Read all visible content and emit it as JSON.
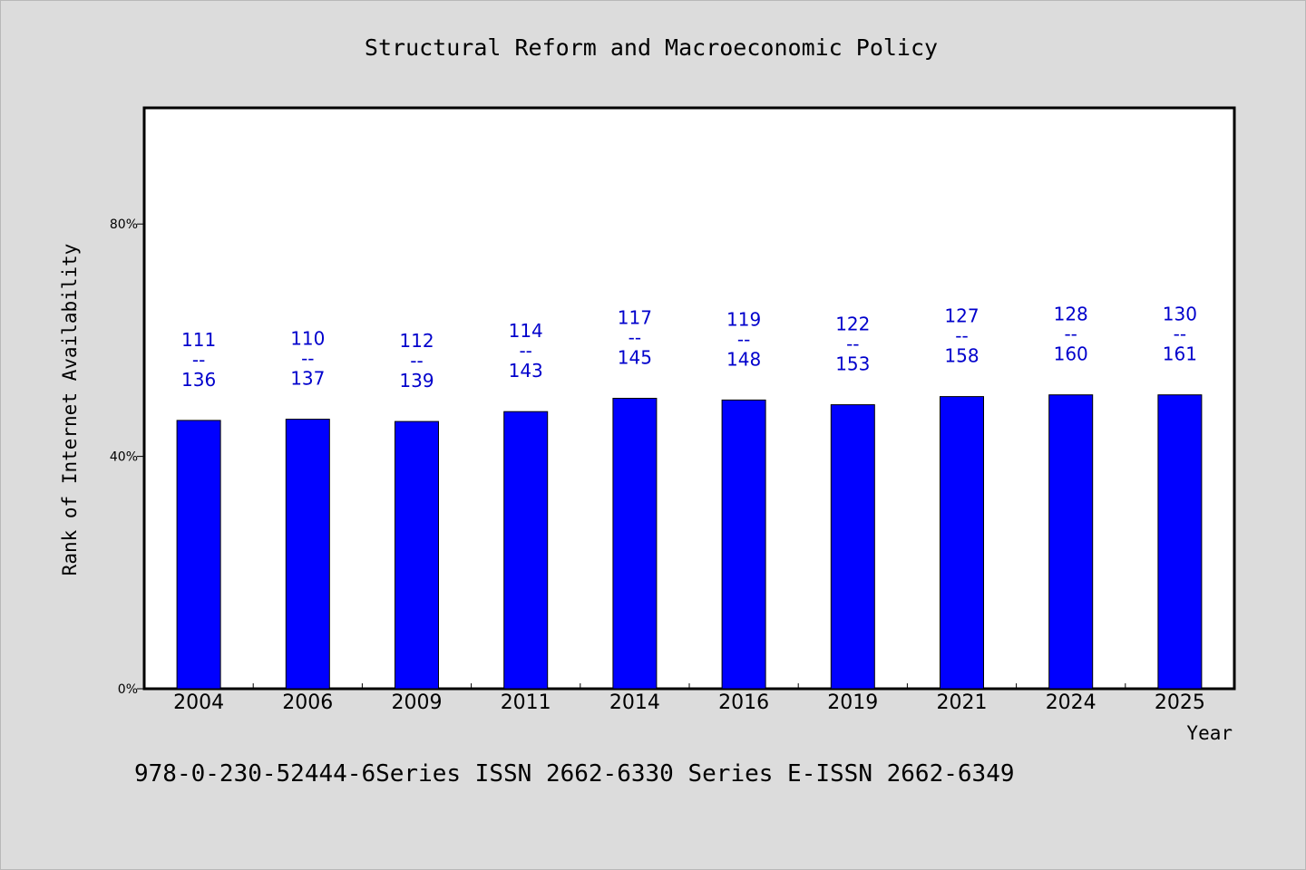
{
  "chart_data": {
    "type": "bar",
    "title": "Structural Reform and Macroeconomic Policy",
    "xlabel": "Year",
    "ylabel": "Rank of Internet Availability",
    "categories": [
      "2004",
      "2006",
      "2009",
      "2011",
      "2014",
      "2016",
      "2019",
      "2021",
      "2024",
      "2025"
    ],
    "values": [
      46.2,
      46.4,
      46.0,
      47.7,
      50.0,
      49.7,
      48.9,
      50.3,
      50.6,
      50.6
    ],
    "y_unit": "%",
    "ylim": [
      0,
      100
    ],
    "yticks": [
      {
        "value": 0,
        "label": "0%"
      },
      {
        "value": 40,
        "label": "40%"
      },
      {
        "value": 80,
        "label": "80%"
      }
    ],
    "data_labels": [
      {
        "rank": "111",
        "separator": "--",
        "total": "136"
      },
      {
        "rank": "110",
        "separator": "--",
        "total": "137"
      },
      {
        "rank": "112",
        "separator": "--",
        "total": "139"
      },
      {
        "rank": "114",
        "separator": "--",
        "total": "143"
      },
      {
        "rank": "117",
        "separator": "--",
        "total": "145"
      },
      {
        "rank": "119",
        "separator": "--",
        "total": "148"
      },
      {
        "rank": "122",
        "separator": "--",
        "total": "153"
      },
      {
        "rank": "127",
        "separator": "--",
        "total": "158"
      },
      {
        "rank": "128",
        "separator": "--",
        "total": "160"
      },
      {
        "rank": "130",
        "separator": "--",
        "total": "161"
      }
    ],
    "grid": false,
    "legend": "none",
    "colors": {
      "bar": "#0000ff",
      "bar_stroke": "#000000",
      "data_label": "#0000cc",
      "plot_background": "#ffffff",
      "page_background": "#dcdcdc"
    }
  },
  "footer": {
    "text": "978-0-230-52444-6Series ISSN 2662-6330 Series E-ISSN 2662-6349"
  }
}
